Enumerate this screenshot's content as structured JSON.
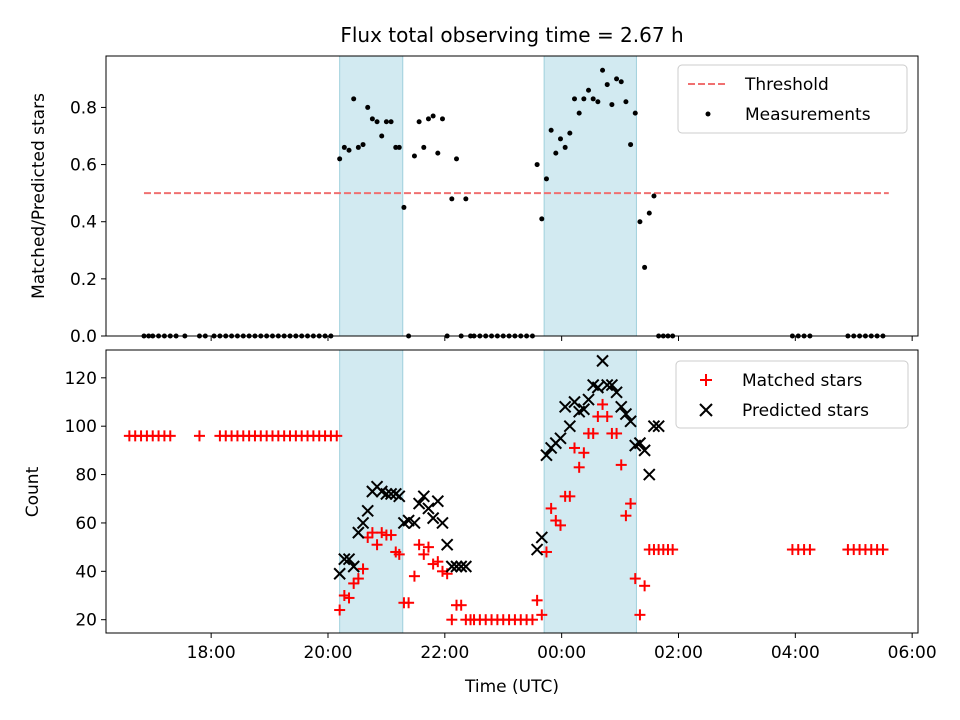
{
  "chart_data": [
    {
      "type": "scatter",
      "title": "Flux total observing time = 2.67 h",
      "ylabel": "Matched/Predicted stars",
      "xlabel": "",
      "xlim": [
        16.2,
        30.1
      ],
      "ylim": [
        0,
        0.98
      ],
      "yticks": [
        0.0,
        0.2,
        0.4,
        0.6,
        0.8
      ],
      "ytick_labels": [
        "0.0",
        "0.2",
        "0.4",
        "0.6",
        "0.8"
      ],
      "shaded_intervals": [
        [
          20.2,
          21.28
        ],
        [
          23.7,
          25.28
        ]
      ],
      "shade_color": "#add8e6",
      "legend_position": "top-right",
      "threshold": {
        "name": "Threshold",
        "x": [
          16.85,
          29.6
        ],
        "y": 0.5,
        "color": "#f07070"
      },
      "series": [
        {
          "name": "Measurements",
          "color": "#000000",
          "x": [
            16.85,
            16.93,
            17.0,
            17.1,
            17.2,
            17.3,
            17.4,
            17.55,
            17.8,
            17.9,
            18.05,
            18.15,
            18.25,
            18.35,
            18.45,
            18.55,
            18.65,
            18.75,
            18.85,
            18.95,
            19.05,
            19.15,
            19.25,
            19.35,
            19.45,
            19.55,
            19.65,
            19.75,
            19.85,
            19.95,
            20.05,
            20.2,
            20.28,
            20.36,
            20.44,
            20.52,
            20.6,
            20.68,
            20.76,
            20.84,
            20.92,
            21.0,
            21.08,
            21.16,
            21.22,
            21.3,
            21.38,
            21.48,
            21.56,
            21.64,
            21.72,
            21.8,
            21.88,
            21.96,
            22.04,
            22.12,
            22.2,
            22.28,
            22.36,
            22.44,
            22.5,
            22.6,
            22.7,
            22.8,
            22.9,
            23.0,
            23.1,
            23.2,
            23.3,
            23.4,
            23.5,
            23.58,
            23.66,
            23.74,
            23.82,
            23.9,
            23.98,
            24.06,
            24.14,
            24.22,
            24.3,
            24.38,
            24.46,
            24.54,
            24.62,
            24.7,
            24.78,
            24.86,
            24.94,
            25.02,
            25.1,
            25.18,
            25.26,
            25.34,
            25.42,
            25.5,
            25.58,
            25.66,
            25.74,
            25.82,
            25.9,
            27.95,
            28.05,
            28.15,
            28.25,
            28.9,
            29.0,
            29.1,
            29.2,
            29.3,
            29.4,
            29.5
          ],
          "y": [
            0,
            0,
            0,
            0,
            0,
            0,
            0,
            0,
            0,
            0,
            0,
            0,
            0,
            0,
            0,
            0,
            0,
            0,
            0,
            0,
            0,
            0,
            0,
            0,
            0,
            0,
            0,
            0,
            0,
            0,
            0,
            0.62,
            0.66,
            0.65,
            0.83,
            0.66,
            0.67,
            0.8,
            0.76,
            0.75,
            0.7,
            0.75,
            0.75,
            0.66,
            0.66,
            0.45,
            0.0,
            0.63,
            0.75,
            0.66,
            0.76,
            0.77,
            0.64,
            0.76,
            0.0,
            0.48,
            0.62,
            0.0,
            0.48,
            0.0,
            0.0,
            0.0,
            0.0,
            0.0,
            0.0,
            0.0,
            0.0,
            0.0,
            0.0,
            0.0,
            0.0,
            0.6,
            0.41,
            0.55,
            0.72,
            0.64,
            0.69,
            0.66,
            0.71,
            0.83,
            0.78,
            0.83,
            0.86,
            0.83,
            0.82,
            0.93,
            0.88,
            0.81,
            0.9,
            0.89,
            0.82,
            0.67,
            0.78,
            0.4,
            0.24,
            0.43,
            0.49,
            0.0,
            0.0,
            0.0,
            0.0,
            0.0,
            0.0,
            0.0,
            0.0,
            0.0,
            0.0,
            0.0,
            0.0,
            0.0,
            0.0,
            0.0
          ]
        }
      ]
    },
    {
      "type": "scatter",
      "title": "",
      "xlabel": "Time (UTC)",
      "ylabel": "Count",
      "xlim": [
        16.2,
        30.1
      ],
      "ylim": [
        14.5,
        131.5
      ],
      "xticks": [
        18,
        20,
        22,
        24,
        26,
        28,
        30
      ],
      "xtick_labels": [
        "18:00",
        "20:00",
        "22:00",
        "00:00",
        "02:00",
        "04:00",
        "06:00"
      ],
      "yticks": [
        20,
        40,
        60,
        80,
        100,
        120
      ],
      "ytick_labels": [
        "20",
        "40",
        "60",
        "80",
        "100",
        "120"
      ],
      "shaded_intervals": [
        [
          20.2,
          21.28
        ],
        [
          23.7,
          25.28
        ]
      ],
      "shade_color": "#add8e6",
      "legend_position": "top-right",
      "series": [
        {
          "name": "Matched stars",
          "color": "#ff0000",
          "x": [
            16.6,
            16.7,
            16.8,
            16.9,
            17.0,
            17.1,
            17.2,
            17.3,
            17.8,
            18.15,
            18.25,
            18.35,
            18.45,
            18.55,
            18.65,
            18.75,
            18.85,
            18.95,
            19.05,
            19.15,
            19.25,
            19.35,
            19.45,
            19.55,
            19.65,
            19.75,
            19.85,
            19.95,
            20.05,
            20.15,
            20.2,
            20.28,
            20.36,
            20.44,
            20.52,
            20.6,
            20.68,
            20.76,
            20.84,
            20.92,
            21.0,
            21.08,
            21.16,
            21.22,
            21.3,
            21.38,
            21.48,
            21.56,
            21.64,
            21.72,
            21.8,
            21.88,
            21.96,
            22.04,
            22.12,
            22.2,
            22.28,
            22.36,
            22.44,
            22.5,
            22.6,
            22.7,
            22.8,
            22.9,
            23.0,
            23.1,
            23.2,
            23.3,
            23.4,
            23.5,
            23.58,
            23.66,
            23.74,
            23.82,
            23.9,
            23.98,
            24.06,
            24.14,
            24.22,
            24.3,
            24.38,
            24.46,
            24.54,
            24.62,
            24.7,
            24.78,
            24.86,
            24.94,
            25.02,
            25.1,
            25.18,
            25.26,
            25.34,
            25.42,
            25.5,
            25.58,
            25.66,
            25.74,
            25.82,
            25.9,
            27.95,
            28.05,
            28.15,
            28.25,
            28.9,
            29.0,
            29.1,
            29.2,
            29.3,
            29.4,
            29.5
          ],
          "y": [
            96,
            96,
            96,
            96,
            96,
            96,
            96,
            96,
            96,
            96,
            96,
            96,
            96,
            96,
            96,
            96,
            96,
            96,
            96,
            96,
            96,
            96,
            96,
            96,
            96,
            96,
            96,
            96,
            96,
            96,
            24,
            30,
            29,
            35,
            37,
            41,
            54,
            56,
            51,
            56,
            55,
            55,
            48,
            47,
            27,
            27,
            38,
            51,
            47,
            50,
            43,
            44,
            40,
            39,
            20,
            26,
            26,
            20,
            20,
            20,
            20,
            20,
            20,
            20,
            20,
            20,
            20,
            20,
            20,
            20,
            28,
            22,
            48,
            66,
            61,
            59,
            71,
            71,
            91,
            83,
            89,
            97,
            97,
            104,
            109,
            104,
            97,
            97,
            84,
            63,
            68,
            37,
            22,
            34,
            49,
            49,
            49,
            49,
            49,
            49,
            49,
            49,
            49,
            49,
            49,
            49,
            49,
            49,
            49,
            49,
            49
          ]
        },
        {
          "name": "Predicted stars",
          "color": "#000000",
          "x": [
            20.2,
            20.28,
            20.36,
            20.44,
            20.52,
            20.6,
            20.68,
            20.76,
            20.84,
            20.92,
            21.0,
            21.08,
            21.16,
            21.22,
            21.3,
            21.38,
            21.48,
            21.56,
            21.64,
            21.72,
            21.8,
            21.88,
            21.96,
            22.04,
            22.12,
            22.2,
            22.28,
            22.36,
            23.58,
            23.66,
            23.74,
            23.82,
            23.9,
            23.98,
            24.06,
            24.14,
            24.22,
            24.3,
            24.38,
            24.46,
            24.54,
            24.62,
            24.7,
            24.78,
            24.86,
            24.94,
            25.02,
            25.1,
            25.18,
            25.26,
            25.34,
            25.42,
            25.5,
            25.58,
            25.66
          ],
          "y": [
            39,
            45,
            45,
            42,
            56,
            60,
            65,
            73,
            75,
            73,
            72,
            72,
            72,
            71,
            60,
            61,
            60,
            68,
            71,
            66,
            62,
            69,
            60,
            51,
            42,
            42,
            42,
            42,
            49,
            54,
            88,
            91,
            93,
            95,
            108,
            100,
            110,
            106,
            107,
            111,
            117,
            116,
            127,
            117,
            117,
            114,
            108,
            105,
            102,
            92,
            93,
            90,
            80,
            100,
            100
          ]
        }
      ]
    }
  ]
}
